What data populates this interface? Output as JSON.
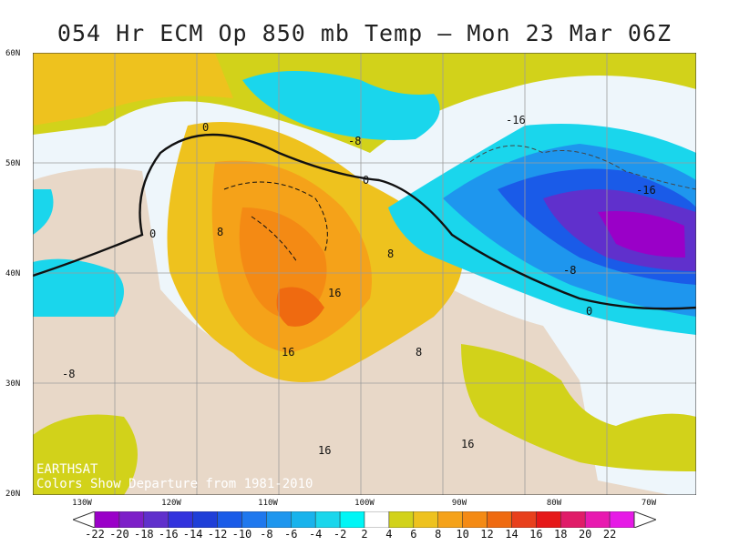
{
  "title": "054 Hr ECM Op 850 mb Temp — Mon 23 Mar 06Z",
  "lat_labels": [
    "60N",
    "50N",
    "40N",
    "30N",
    "20N"
  ],
  "lon_labels": [
    "130W",
    "120W",
    "110W",
    "100W",
    "90W",
    "80W",
    "70W"
  ],
  "credit": {
    "line1": "EARTHSAT",
    "line2": "Colors Show Departure from 1981-2010"
  },
  "contour_labels": [
    "0",
    "0",
    "0",
    "0",
    "-8",
    "-16",
    "-16",
    "-8",
    "8",
    "8",
    "16",
    "16",
    "16",
    "-8",
    "8",
    "-8",
    "16"
  ],
  "colorbar": {
    "ticks": [
      "-22",
      "-20",
      "-18",
      "-16",
      "-14",
      "-12",
      "-10",
      "-8",
      "-6",
      "-4",
      "-2",
      "2",
      "4",
      "6",
      "8",
      "10",
      "12",
      "14",
      "16",
      "18",
      "20",
      "22"
    ],
    "colors": [
      "#9a00c8",
      "#7d1fc8",
      "#6030cc",
      "#3333dd",
      "#1f3fd8",
      "#1a5be8",
      "#1f78ee",
      "#1e96ee",
      "#18b3ec",
      "#1ad6ec",
      "#00f6f6",
      "#ffffff",
      "#d2d21a",
      "#eec21e",
      "#f5a219",
      "#f48a14",
      "#ef6a10",
      "#e8401c",
      "#e61818",
      "#e01c68",
      "#e81ab0",
      "#e61ae6"
    ]
  },
  "colors": {
    "land_neutral": "#e8d8c8",
    "ocean_neutral": "#eef6fb",
    "border_lines": "#808080"
  }
}
